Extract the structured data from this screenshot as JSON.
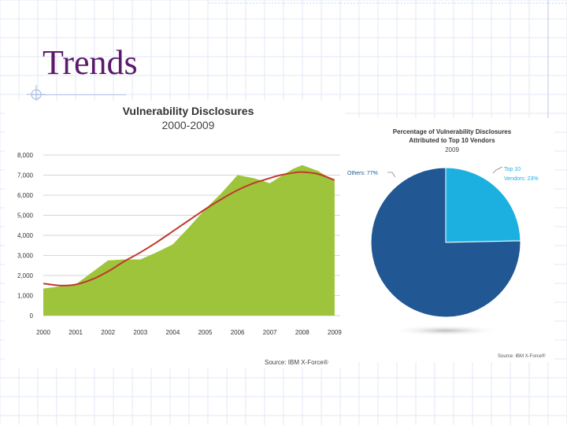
{
  "slide": {
    "title": "Trends"
  },
  "chart_data": [
    {
      "type": "area",
      "title": "Vulnerability Disclosures",
      "subtitle": "2000-2009",
      "x": [
        2000,
        2000.5,
        2001,
        2001.5,
        2002,
        2002.5,
        2003,
        2003.5,
        2004,
        2004.5,
        2005,
        2005.5,
        2006,
        2006.5,
        2006.8,
        2007,
        2007.3,
        2007.7,
        2008,
        2008.5,
        2009
      ],
      "categories": [
        "2000",
        "2001",
        "2002",
        "2003",
        "2004",
        "2005",
        "2006",
        "2007",
        "2008",
        "2009"
      ],
      "series": [
        {
          "values": [
            1350,
            1450,
            1550,
            2150,
            2750,
            2800,
            2800,
            3150,
            3550,
            4400,
            5300,
            6100,
            7000,
            6850,
            6700,
            6600,
            6900,
            7300,
            7500,
            7200,
            6700
          ],
          "color": "#9dc43a"
        },
        {
          "values": [
            1600,
            1500,
            1550,
            1800,
            2200,
            2700,
            3150,
            3650,
            4200,
            4750,
            5300,
            5800,
            6250,
            6600,
            6750,
            6850,
            6990,
            7110,
            7150,
            7050,
            6750
          ],
          "color": "#c0392b"
        }
      ],
      "ylim": [
        0,
        8000
      ],
      "yticks": [
        "0",
        "1,000",
        "2,000",
        "3,000",
        "4,000",
        "5,000",
        "6,000",
        "7,000",
        "8,000"
      ],
      "grid": true,
      "source": "Source: IBM X-Force®"
    },
    {
      "type": "pie",
      "title": "Percentage of Vulnerability Disclosures Attributed to Top 10 Vendors",
      "subtitle": "2009",
      "slices": [
        {
          "label": "Top 10 Vendors: 23%",
          "value": 23,
          "color": "#1cb0e0"
        },
        {
          "label": "Others: 77%",
          "value": 77,
          "color": "#215793"
        }
      ],
      "source": "Source: IBM X-Force®"
    }
  ]
}
